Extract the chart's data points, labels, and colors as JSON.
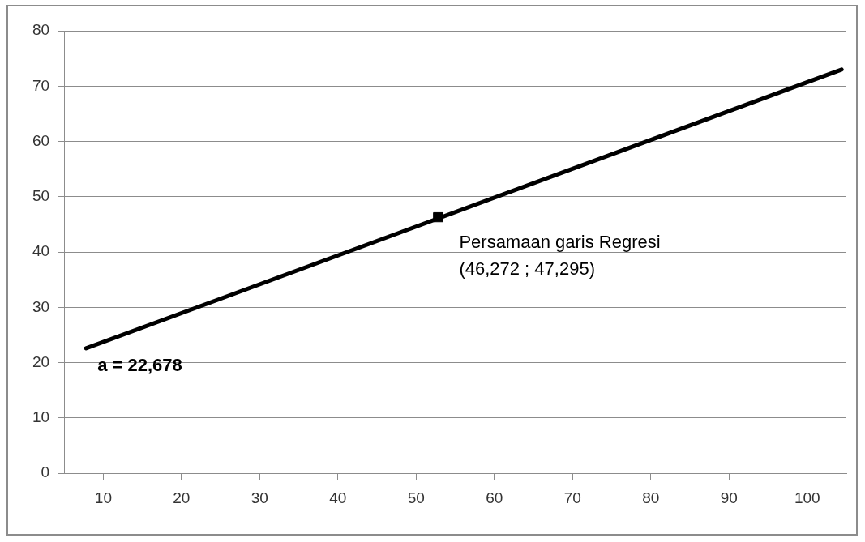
{
  "chart_data": {
    "type": "line",
    "xlim": [
      5,
      105
    ],
    "xticks": [
      10,
      20,
      30,
      40,
      50,
      60,
      70,
      80,
      90,
      100
    ],
    "ylim": [
      0,
      80
    ],
    "yticks": [
      0,
      10,
      20,
      30,
      40,
      50,
      60,
      70,
      80
    ],
    "grid": "y",
    "legend": false,
    "series": [
      {
        "type": "line",
        "color": "#000000",
        "x": [
          7.8,
          104.4
        ],
        "values": [
          22.6,
          73.0
        ],
        "marker": "none",
        "line_style": "solid"
      },
      {
        "type": "scatter",
        "color": "#000000",
        "x": [
          52.8
        ],
        "values": [
          46.3
        ],
        "marker": "square"
      }
    ],
    "annotations": [
      {
        "text": "a = 22,678",
        "x": 7.8,
        "y": 22.6
      },
      "Persamaan garis Regresi",
      "(46,272 ; 47,295)"
    ]
  }
}
